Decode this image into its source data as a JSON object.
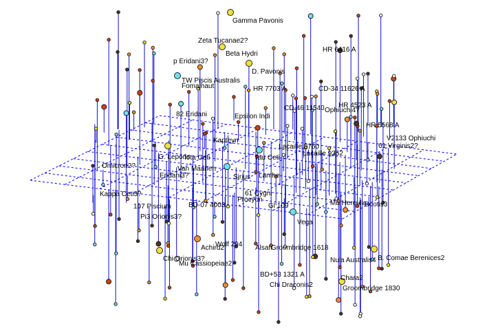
{
  "colors": {
    "grid": "#0000ff",
    "drop_line": "#1010cc",
    "star_yellow": "#f0e040",
    "star_orange": "#f09030",
    "star_red": "#d04010",
    "star_cyan": "#70e0f0",
    "star_white": "#ffffff",
    "star_dark": "#503020"
  },
  "star_names": [
    "Gamma Pavonis",
    "Zeta Tucanae2?",
    "Beta Hydri",
    "p Eridani3?",
    "HR 6416 A",
    "D. Pavonis",
    "TW Piscis Australis",
    "Fomalhaut",
    "HR 7703 A",
    "CD-34 11626 A",
    "CD-46 11540",
    "Ophiuchi4?",
    "HR 4523 A",
    "82 Eridani",
    "Epsilon Indi",
    "HR 5568 A",
    "V2133 Ophiuchi",
    "61 Virginis2?",
    "Kapteyn",
    "Lacaille 8760",
    "Lacaille 9352",
    "G. Leporis",
    "Omicron2?",
    "Iota Ceti",
    "Van Maanen",
    "Sirius",
    "Tau Ceti",
    "Lanthe",
    "Eridani3?",
    "Procyon",
    "61 Cygni",
    "Kappa Ceti3?",
    "Pi3 Orionis3?",
    "107 Piscium",
    "BD-07 4003",
    "Chara2",
    "Mu Herculis",
    "Bootis3",
    "Vega",
    "Gl 109",
    "Wolf 294",
    "Achird2",
    "Alsafi",
    "Groombridge 1618",
    "Chi Orionis3?",
    "Mu Cassiopeiae2",
    "B. Comae Berenices2",
    "Chi Draconis2",
    "BD+53 1321 A",
    "Nula Australis4",
    "Groombridge 1830"
  ]
}
